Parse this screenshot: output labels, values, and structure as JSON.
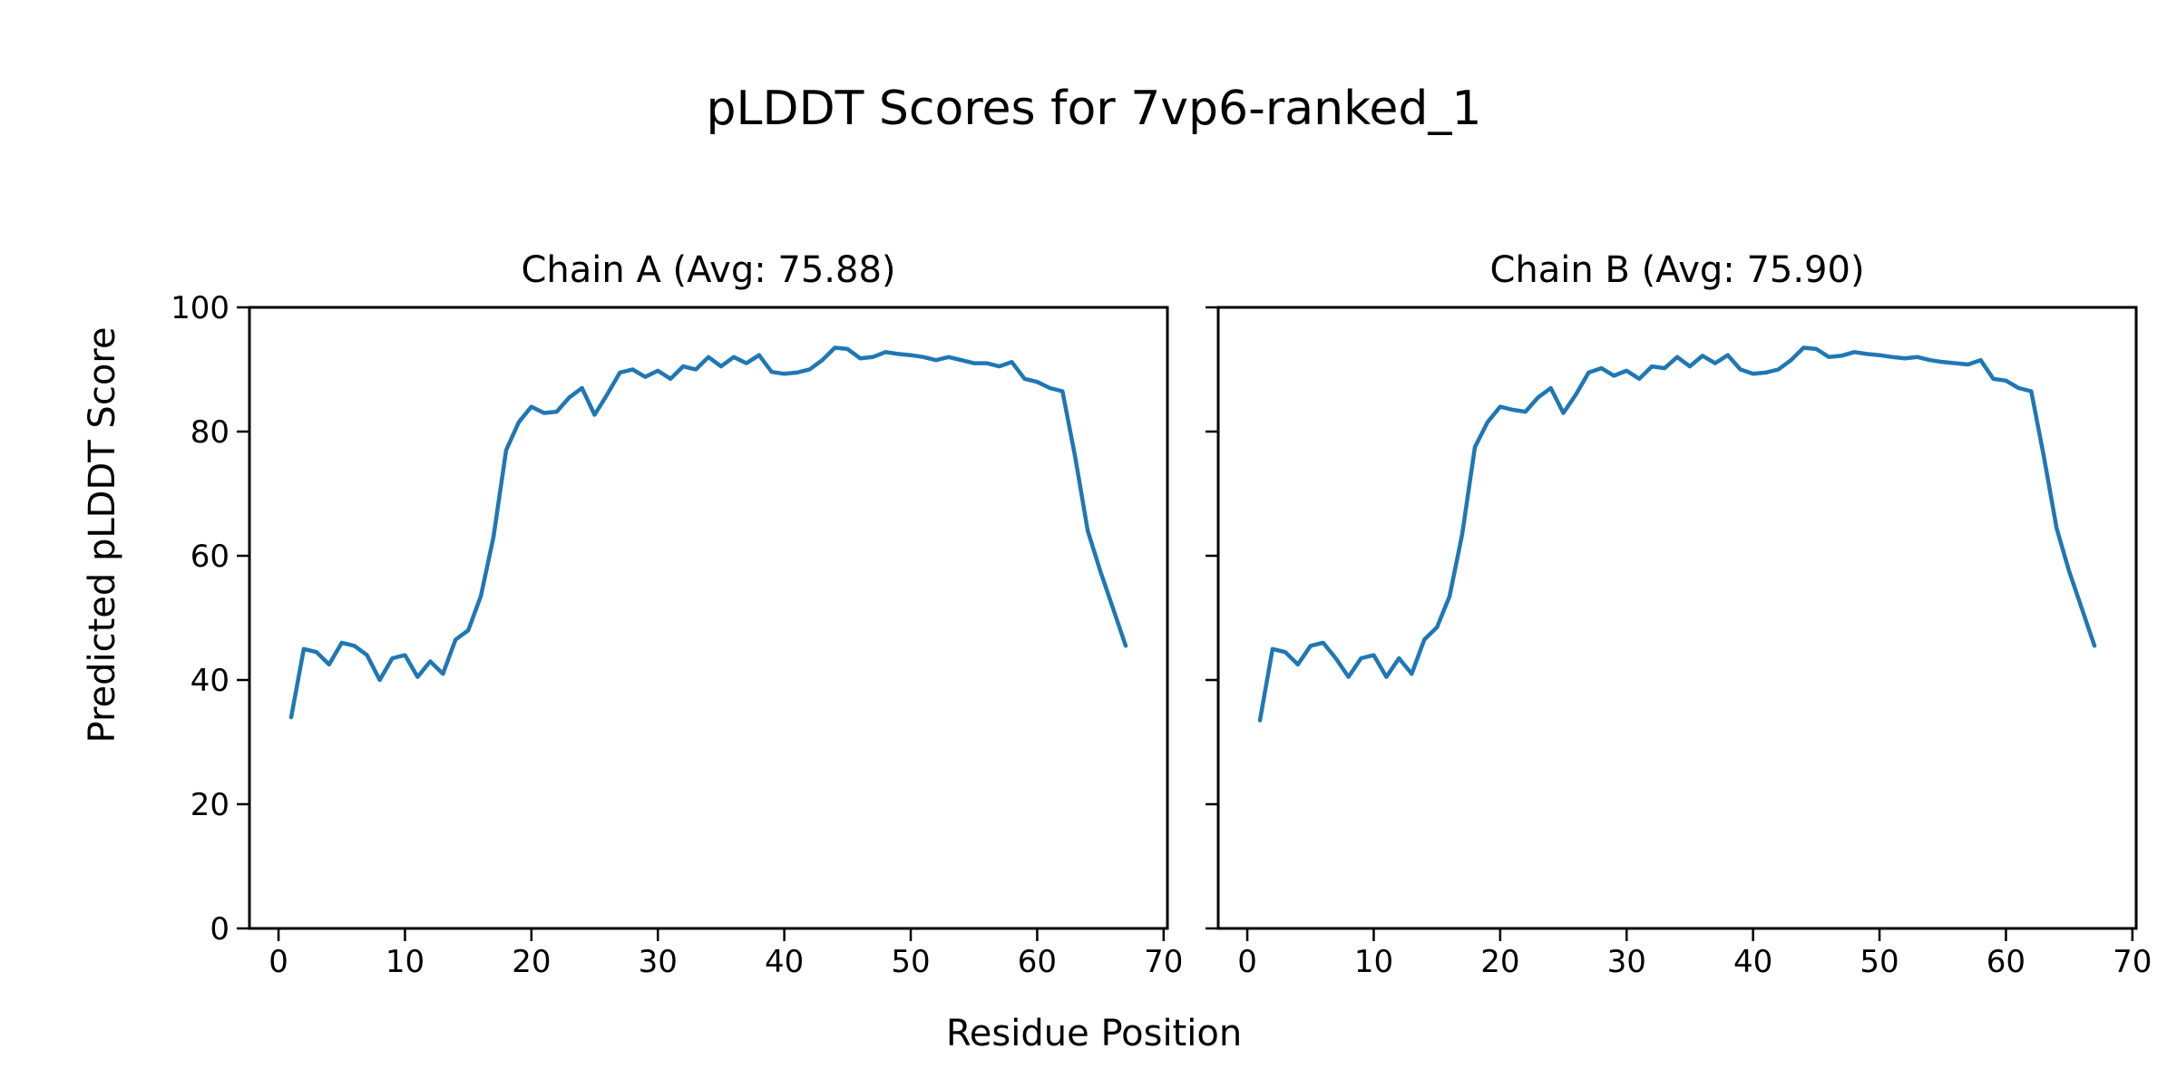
{
  "figure": {
    "suptitle": "pLDDT Scores for 7vp6-ranked_1",
    "xlabel": "Residue Position",
    "ylabel": "Predicted pLDDT Score"
  },
  "chart_data": [
    {
      "type": "line",
      "title": "Chain A (Avg: 75.88)",
      "chain": "A",
      "avg": 75.88,
      "color": "#1f77b4",
      "xlim": [
        -2.3,
        70.3
      ],
      "ylim": [
        0,
        100
      ],
      "x_ticks": [
        0,
        10,
        20,
        30,
        40,
        50,
        60,
        70
      ],
      "y_ticks": [
        0,
        20,
        40,
        60,
        80,
        100
      ],
      "show_y_tick_labels": true,
      "x": [
        1,
        2,
        3,
        4,
        5,
        6,
        7,
        8,
        9,
        10,
        11,
        12,
        13,
        14,
        15,
        16,
        17,
        18,
        19,
        20,
        21,
        22,
        23,
        24,
        25,
        26,
        27,
        28,
        29,
        30,
        31,
        32,
        33,
        34,
        35,
        36,
        37,
        38,
        39,
        40,
        41,
        42,
        43,
        44,
        45,
        46,
        47,
        48,
        49,
        50,
        51,
        52,
        53,
        54,
        55,
        56,
        57,
        58,
        59,
        60,
        61,
        62,
        63,
        64,
        65,
        66,
        67
      ],
      "y": [
        34,
        45,
        44.5,
        42.5,
        46,
        45.5,
        44,
        40,
        43.5,
        44,
        40.5,
        43,
        41,
        46.5,
        48,
        53.5,
        63,
        77,
        81.5,
        84,
        83,
        83.2,
        85.5,
        87,
        82.7,
        86,
        89.5,
        90,
        88.8,
        89.8,
        88.5,
        90.5,
        90,
        92,
        90.5,
        92,
        91,
        92.3,
        89.6,
        89.3,
        89.5,
        90,
        91.5,
        93.5,
        93.3,
        91.8,
        92,
        92.8,
        92.5,
        92.3,
        92,
        91.5,
        92,
        91.5,
        91,
        91,
        90.5,
        91.2,
        88.5,
        88,
        87,
        86.5,
        76,
        64,
        57.5,
        51.5,
        45.5
      ]
    },
    {
      "type": "line",
      "title": "Chain B (Avg: 75.90)",
      "chain": "B",
      "avg": 75.9,
      "color": "#1f77b4",
      "xlim": [
        -2.3,
        70.3
      ],
      "ylim": [
        0,
        100
      ],
      "x_ticks": [
        0,
        10,
        20,
        30,
        40,
        50,
        60,
        70
      ],
      "y_ticks": [
        0,
        20,
        40,
        60,
        80,
        100
      ],
      "show_y_tick_labels": false,
      "x": [
        1,
        2,
        3,
        4,
        5,
        6,
        7,
        8,
        9,
        10,
        11,
        12,
        13,
        14,
        15,
        16,
        17,
        18,
        19,
        20,
        21,
        22,
        23,
        24,
        25,
        26,
        27,
        28,
        29,
        30,
        31,
        32,
        33,
        34,
        35,
        36,
        37,
        38,
        39,
        40,
        41,
        42,
        43,
        44,
        45,
        46,
        47,
        48,
        49,
        50,
        51,
        52,
        53,
        54,
        55,
        56,
        57,
        58,
        59,
        60,
        61,
        62,
        63,
        64,
        65,
        66,
        67
      ],
      "y": [
        33.5,
        45,
        44.5,
        42.5,
        45.5,
        46,
        43.5,
        40.5,
        43.5,
        44,
        40.5,
        43.5,
        41,
        46.5,
        48.5,
        53.5,
        63.5,
        77.5,
        81.5,
        84,
        83.5,
        83.2,
        85.5,
        87,
        83,
        86,
        89.5,
        90.2,
        89,
        89.8,
        88.5,
        90.5,
        90.2,
        92,
        90.5,
        92.2,
        91,
        92.3,
        90,
        89.3,
        89.5,
        90,
        91.5,
        93.5,
        93.3,
        92,
        92.2,
        92.8,
        92.5,
        92.3,
        92,
        91.8,
        92,
        91.5,
        91.2,
        91,
        90.8,
        91.5,
        88.5,
        88.2,
        87,
        86.5,
        76,
        64.5,
        57.5,
        51.5,
        45.5
      ]
    }
  ]
}
